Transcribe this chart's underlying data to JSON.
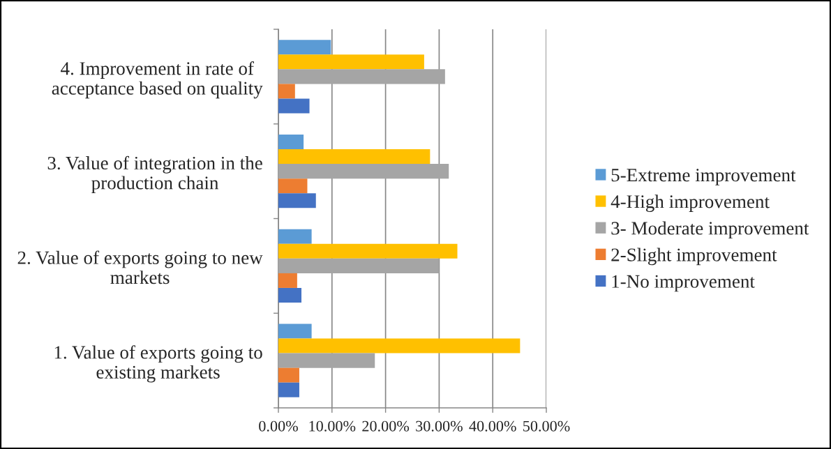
{
  "chart_data": {
    "type": "bar",
    "orientation": "horizontal",
    "categories": [
      "4. Improvement in rate of acceptance based on quality",
      "3. Value of integration in the production chain",
      "2. Value of exports going to new markets",
      "1. Value of exports going to existing markets"
    ],
    "series": [
      {
        "name": "5-Extreme improvement",
        "color": "#5b9bd5",
        "values": [
          9.8,
          4.7,
          6.2,
          6.2
        ]
      },
      {
        "name": "4-High improvement",
        "color": "#ffc000",
        "values": [
          27.2,
          28.3,
          33.4,
          45.1
        ]
      },
      {
        "name": "3- Moderate improvement",
        "color": "#a5a5a5",
        "values": [
          31.1,
          31.8,
          30.0,
          18.0
        ]
      },
      {
        "name": "2-Slight improvement",
        "color": "#ed7d31",
        "values": [
          3.1,
          5.4,
          3.5,
          3.9
        ]
      },
      {
        "name": "1-No improvement",
        "color": "#4472c4",
        "values": [
          5.8,
          7.0,
          4.3,
          3.9
        ]
      }
    ],
    "xlim": [
      0,
      50
    ],
    "xticks": [
      {
        "value": 0,
        "label": "0.00%"
      },
      {
        "value": 10,
        "label": "10.00%"
      },
      {
        "value": 20,
        "label": "20.00%"
      },
      {
        "value": 30,
        "label": "30.00%"
      },
      {
        "value": 40,
        "label": "40.00%"
      },
      {
        "value": 50,
        "label": "50.00%"
      }
    ],
    "grid": "x",
    "legend": "right"
  }
}
